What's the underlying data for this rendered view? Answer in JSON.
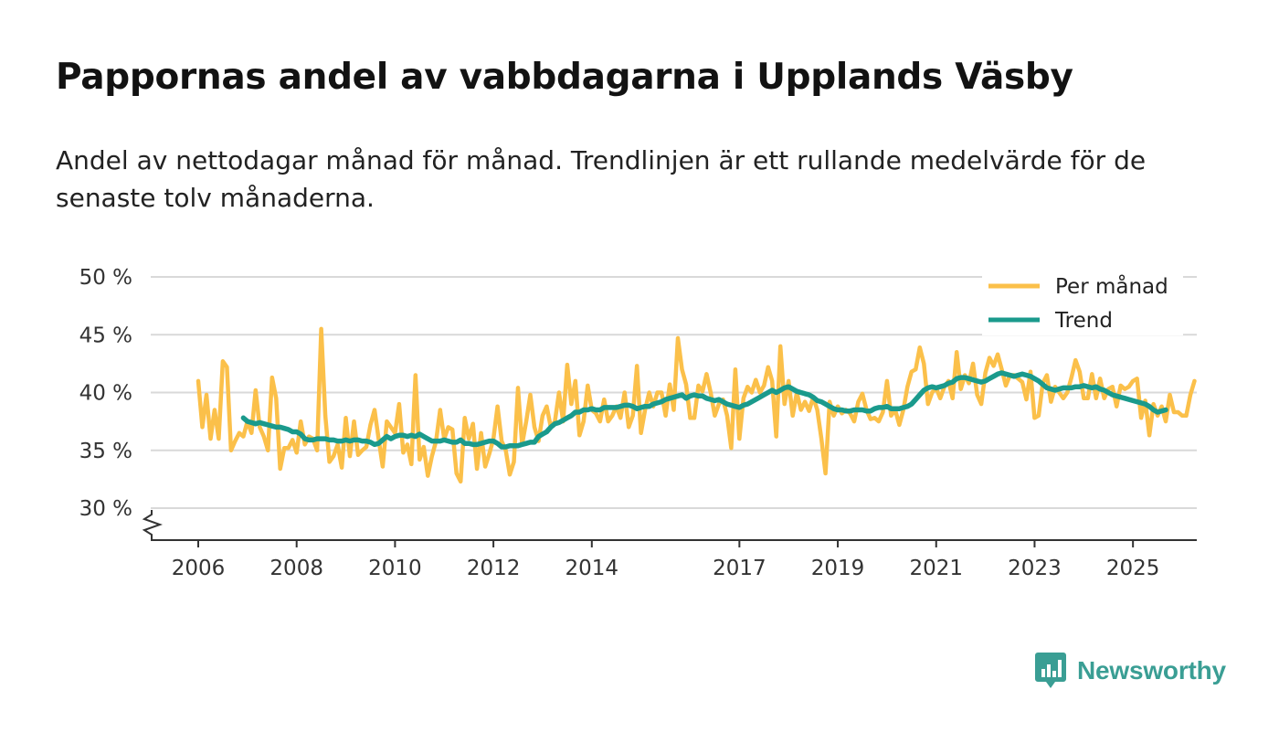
{
  "header": {
    "title": "Pappornas andel av vabbdagarna i Upplands Väsby",
    "subtitle": "Andel av nettodagar månad för månad. Trendlinjen är ett rullande medelvärde för de senaste tolv månaderna."
  },
  "brand": {
    "name": "Newsworthy",
    "icon": "newsworthy-logo-icon",
    "color": "#3a9e94"
  },
  "colors": {
    "monthly": "#fbc04a",
    "trend": "#1a9a8c",
    "grid": "#d9d9d9",
    "axis": "#333333"
  },
  "chart_data": {
    "type": "line",
    "title": "Pappornas andel av vabbdagarna i Upplands Väsby",
    "xlabel": "",
    "ylabel": "",
    "ylim": [
      30,
      50
    ],
    "yticks": [
      30,
      35,
      40,
      45,
      50
    ],
    "ytick_labels": [
      "30 %",
      "35 %",
      "40 %",
      "45 %",
      "50 %"
    ],
    "xlim": [
      2005.5,
      2026.2
    ],
    "xticks": [
      2006,
      2008,
      2010,
      2012,
      2014,
      2017,
      2019,
      2021,
      2023,
      2025
    ],
    "xtick_labels": [
      "2006",
      "2008",
      "2010",
      "2012",
      "2014",
      "2017",
      "2019",
      "2021",
      "2023",
      "2025"
    ],
    "grid": true,
    "legend_position": "top-right",
    "series": [
      {
        "name": "Per månad",
        "color": "#fbc04a",
        "start": 2006.0,
        "step": 0.0833333,
        "values": [
          41.0,
          37.0,
          39.8,
          36.0,
          38.5,
          36.0,
          42.7,
          42.2,
          35.0,
          35.8,
          36.5,
          36.2,
          37.5,
          36.5,
          40.2,
          37.0,
          36.2,
          35.0,
          41.3,
          39.5,
          33.4,
          35.2,
          35.2,
          35.9,
          34.8,
          37.5,
          35.5,
          36.2,
          36.0,
          35.0,
          45.5,
          38.0,
          34.0,
          34.5,
          35.5,
          33.5,
          37.8,
          34.5,
          37.5,
          34.6,
          35.0,
          35.3,
          37.2,
          38.5,
          36.0,
          33.6,
          37.5,
          37.0,
          36.5,
          39.0,
          34.8,
          35.5,
          33.8,
          41.5,
          34.2,
          35.3,
          32.8,
          34.5,
          35.8,
          38.5,
          36.0,
          37.0,
          36.8,
          33.0,
          32.3,
          37.8,
          36.0,
          37.3,
          33.4,
          36.5,
          33.6,
          34.7,
          36.0,
          38.8,
          35.8,
          35.0,
          32.9,
          34.0,
          40.4,
          35.5,
          37.5,
          39.8,
          37.0,
          35.8,
          38.0,
          38.8,
          37.0,
          37.5,
          40.0,
          37.5,
          42.4,
          39.0,
          41.0,
          36.3,
          37.5,
          40.6,
          38.5,
          38.2,
          37.5,
          39.4,
          37.5,
          38.0,
          38.8,
          37.8,
          40.0,
          37.0,
          38.0,
          42.3,
          36.5,
          38.5,
          40.0,
          38.8,
          40.0,
          40.0,
          38.0,
          40.7,
          38.5,
          44.7,
          42.0,
          40.7,
          37.8,
          37.8,
          40.6,
          40.1,
          41.6,
          40.0,
          38.0,
          39.0,
          39.4,
          38.0,
          35.2,
          42.0,
          36.0,
          39.5,
          40.5,
          40.0,
          41.1,
          40.0,
          40.6,
          42.2,
          41.0,
          36.2,
          44.0,
          39.0,
          41.0,
          38.0,
          40.0,
          38.5,
          39.2,
          38.4,
          39.6,
          38.5,
          36.0,
          33.0,
          39.2,
          38.0,
          38.8,
          38.2,
          38.5,
          38.2,
          37.5,
          39.2,
          39.9,
          38.5,
          37.7,
          37.8,
          37.5,
          38.3,
          41.0,
          38.0,
          38.5,
          37.2,
          38.5,
          40.5,
          41.8,
          42.0,
          43.9,
          42.5,
          39.0,
          40.0,
          40.4,
          39.5,
          40.5,
          41.0,
          39.5,
          43.5,
          40.3,
          41.5,
          40.8,
          42.5,
          39.8,
          39.0,
          41.7,
          43.0,
          42.3,
          43.3,
          42.0,
          40.6,
          41.5,
          41.5,
          41.2,
          40.9,
          39.4,
          41.8,
          37.8,
          38.0,
          40.8,
          41.5,
          39.2,
          40.5,
          40.0,
          39.5,
          40.0,
          41.3,
          42.8,
          41.8,
          39.5,
          39.5,
          41.6,
          39.5,
          41.2,
          39.5,
          40.3,
          40.5,
          38.8,
          40.6,
          40.3,
          40.5,
          41.0,
          41.2,
          37.8,
          39.3,
          36.3,
          39.0,
          38.0,
          38.8,
          37.5,
          39.8,
          38.3,
          38.3,
          38.0,
          38.0,
          39.8,
          41.0
        ]
      },
      {
        "name": "Trend",
        "color": "#1a9a8c",
        "start": 2006.9166667,
        "step": 0.0833333,
        "values": [
          37.8,
          37.5,
          37.4,
          37.3,
          37.4,
          37.3,
          37.2,
          37.1,
          37.0,
          37.0,
          36.9,
          36.8,
          36.6,
          36.6,
          36.4,
          36.0,
          35.9,
          35.9,
          36.0,
          36.0,
          36.0,
          35.9,
          35.9,
          35.8,
          35.8,
          35.9,
          35.8,
          35.9,
          35.9,
          35.8,
          35.8,
          35.7,
          35.5,
          35.6,
          35.9,
          36.2,
          36.0,
          36.2,
          36.3,
          36.3,
          36.2,
          36.3,
          36.2,
          36.4,
          36.2,
          36.0,
          35.8,
          35.8,
          35.8,
          35.9,
          35.8,
          35.7,
          35.7,
          35.9,
          35.6,
          35.6,
          35.5,
          35.5,
          35.6,
          35.7,
          35.8,
          35.8,
          35.6,
          35.3,
          35.3,
          35.4,
          35.4,
          35.4,
          35.5,
          35.6,
          35.7,
          35.7,
          36.2,
          36.4,
          36.6,
          37.0,
          37.3,
          37.4,
          37.6,
          37.8,
          38.0,
          38.3,
          38.3,
          38.5,
          38.5,
          38.6,
          38.5,
          38.5,
          38.7,
          38.7,
          38.7,
          38.7,
          38.8,
          38.9,
          38.9,
          38.8,
          38.6,
          38.7,
          38.8,
          38.8,
          39.0,
          39.1,
          39.2,
          39.4,
          39.5,
          39.6,
          39.7,
          39.8,
          39.5,
          39.7,
          39.8,
          39.7,
          39.7,
          39.5,
          39.4,
          39.3,
          39.4,
          39.2,
          39.0,
          38.9,
          38.8,
          38.7,
          38.9,
          39.0,
          39.2,
          39.4,
          39.6,
          39.8,
          40.0,
          40.2,
          40.0,
          40.2,
          40.4,
          40.5,
          40.3,
          40.1,
          40.0,
          39.9,
          39.8,
          39.6,
          39.3,
          39.2,
          39.0,
          38.8,
          38.6,
          38.5,
          38.5,
          38.4,
          38.4,
          38.5,
          38.5,
          38.5,
          38.4,
          38.4,
          38.6,
          38.7,
          38.7,
          38.8,
          38.6,
          38.6,
          38.6,
          38.7,
          38.8,
          39.0,
          39.4,
          39.8,
          40.2,
          40.4,
          40.5,
          40.4,
          40.5,
          40.6,
          40.8,
          40.9,
          41.2,
          41.3,
          41.3,
          41.2,
          41.1,
          41.0,
          40.9,
          41.0,
          41.2,
          41.4,
          41.6,
          41.7,
          41.6,
          41.5,
          41.4,
          41.5,
          41.6,
          41.5,
          41.4,
          41.2,
          41.0,
          40.7,
          40.4,
          40.3,
          40.2,
          40.3,
          40.4,
          40.4,
          40.4,
          40.5,
          40.5,
          40.6,
          40.5,
          40.4,
          40.5,
          40.3,
          40.2,
          40.0,
          39.8,
          39.7,
          39.6,
          39.5,
          39.4,
          39.3,
          39.2,
          39.1,
          39.0,
          38.8,
          38.5,
          38.3,
          38.4,
          38.5
        ]
      }
    ]
  }
}
